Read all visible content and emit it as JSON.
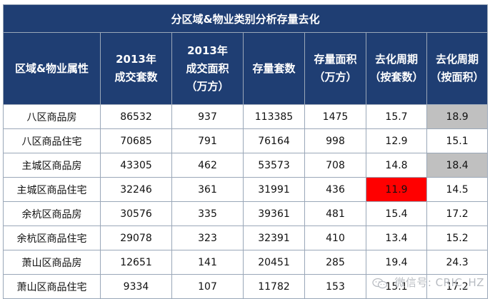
{
  "table": {
    "title": "分区域&物业类别分析存量去化",
    "headers": [
      [
        "区域&物业属性"
      ],
      [
        "2013年",
        "成交套数"
      ],
      [
        "2013年",
        "成交面积",
        "（万方）"
      ],
      [
        "存量套数"
      ],
      [
        "存量面积",
        "（万方）"
      ],
      [
        "去化周期",
        "（按套数）"
      ],
      [
        "去化周期",
        "（按面积）"
      ]
    ],
    "rows": [
      [
        "八区商品房",
        "86532",
        "937",
        "113385",
        "1475",
        "15.7",
        "18.9"
      ],
      [
        "八区商品住宅",
        "70685",
        "791",
        "76164",
        "998",
        "12.9",
        "15.1"
      ],
      [
        "主城区商品房",
        "43305",
        "462",
        "53573",
        "708",
        "14.8",
        "18.4"
      ],
      [
        "主城区商品住宅",
        "32246",
        "361",
        "31991",
        "436",
        "11.9",
        "14.5"
      ],
      [
        "余杭区商品房",
        "30576",
        "335",
        "39361",
        "481",
        "15.4",
        "17.2"
      ],
      [
        "余杭区商品住宅",
        "29078",
        "323",
        "32391",
        "410",
        "13.4",
        "15.2"
      ],
      [
        "萧山区商品房",
        "12651",
        "141",
        "20451",
        "285",
        "19.4",
        "24.3"
      ],
      [
        "萧山区商品住宅",
        "9334",
        "107",
        "11782",
        "153",
        "15.1",
        "17.2"
      ]
    ],
    "highlight_colors": {
      "gray": "#c0c0c0",
      "red": "#ff0000",
      "header": "#1f3e73"
    }
  },
  "watermark": {
    "text": "微信号: CRIC_HZ",
    "icon": "wechat-icon"
  }
}
